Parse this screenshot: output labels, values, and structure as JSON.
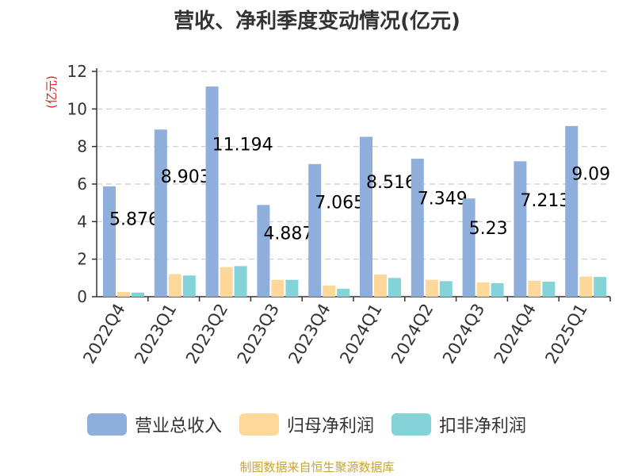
{
  "chart_data": {
    "type": "bar",
    "title": "营收、净利季度变动情况(亿元)",
    "ylabel": "(亿元)",
    "ylim": [
      0,
      12
    ],
    "yticks": [
      "0",
      "2",
      "4",
      "6",
      "8",
      "10",
      "12"
    ],
    "grid": true,
    "legend_position": "bottom",
    "categories": [
      "2022Q4",
      "2023Q1",
      "2023Q2",
      "2023Q3",
      "2023Q4",
      "2024Q1",
      "2024Q2",
      "2024Q3",
      "2024Q4",
      "2025Q1"
    ],
    "series": [
      {
        "name": "营业总收入",
        "color": "#8eaedc",
        "values": [
          5.876,
          8.903,
          11.194,
          4.887,
          7.065,
          8.516,
          7.349,
          5.23,
          7.213,
          9.09
        ]
      },
      {
        "name": "归母净利润",
        "color": "#fdd89a",
        "values": [
          0.25,
          1.2,
          1.58,
          0.9,
          0.6,
          1.18,
          0.9,
          0.76,
          0.85,
          1.07
        ]
      },
      {
        "name": "扣非净利润",
        "color": "#84d3d8",
        "values": [
          0.22,
          1.13,
          1.63,
          0.9,
          0.42,
          1.0,
          0.83,
          0.72,
          0.8,
          1.05
        ]
      }
    ],
    "data_labels": [
      "5.876",
      "8.903",
      "11.194",
      "4.887",
      "7.065",
      "8.516",
      "7.349",
      "5.23",
      "7.213",
      "9.09"
    ]
  },
  "source": "制图数据来自恒生聚源数据库",
  "colors": {
    "axis": "#333333",
    "grid": "#cccccc",
    "ylabel": "#e0241b",
    "source": "#c8a23a",
    "title": "#333333"
  }
}
